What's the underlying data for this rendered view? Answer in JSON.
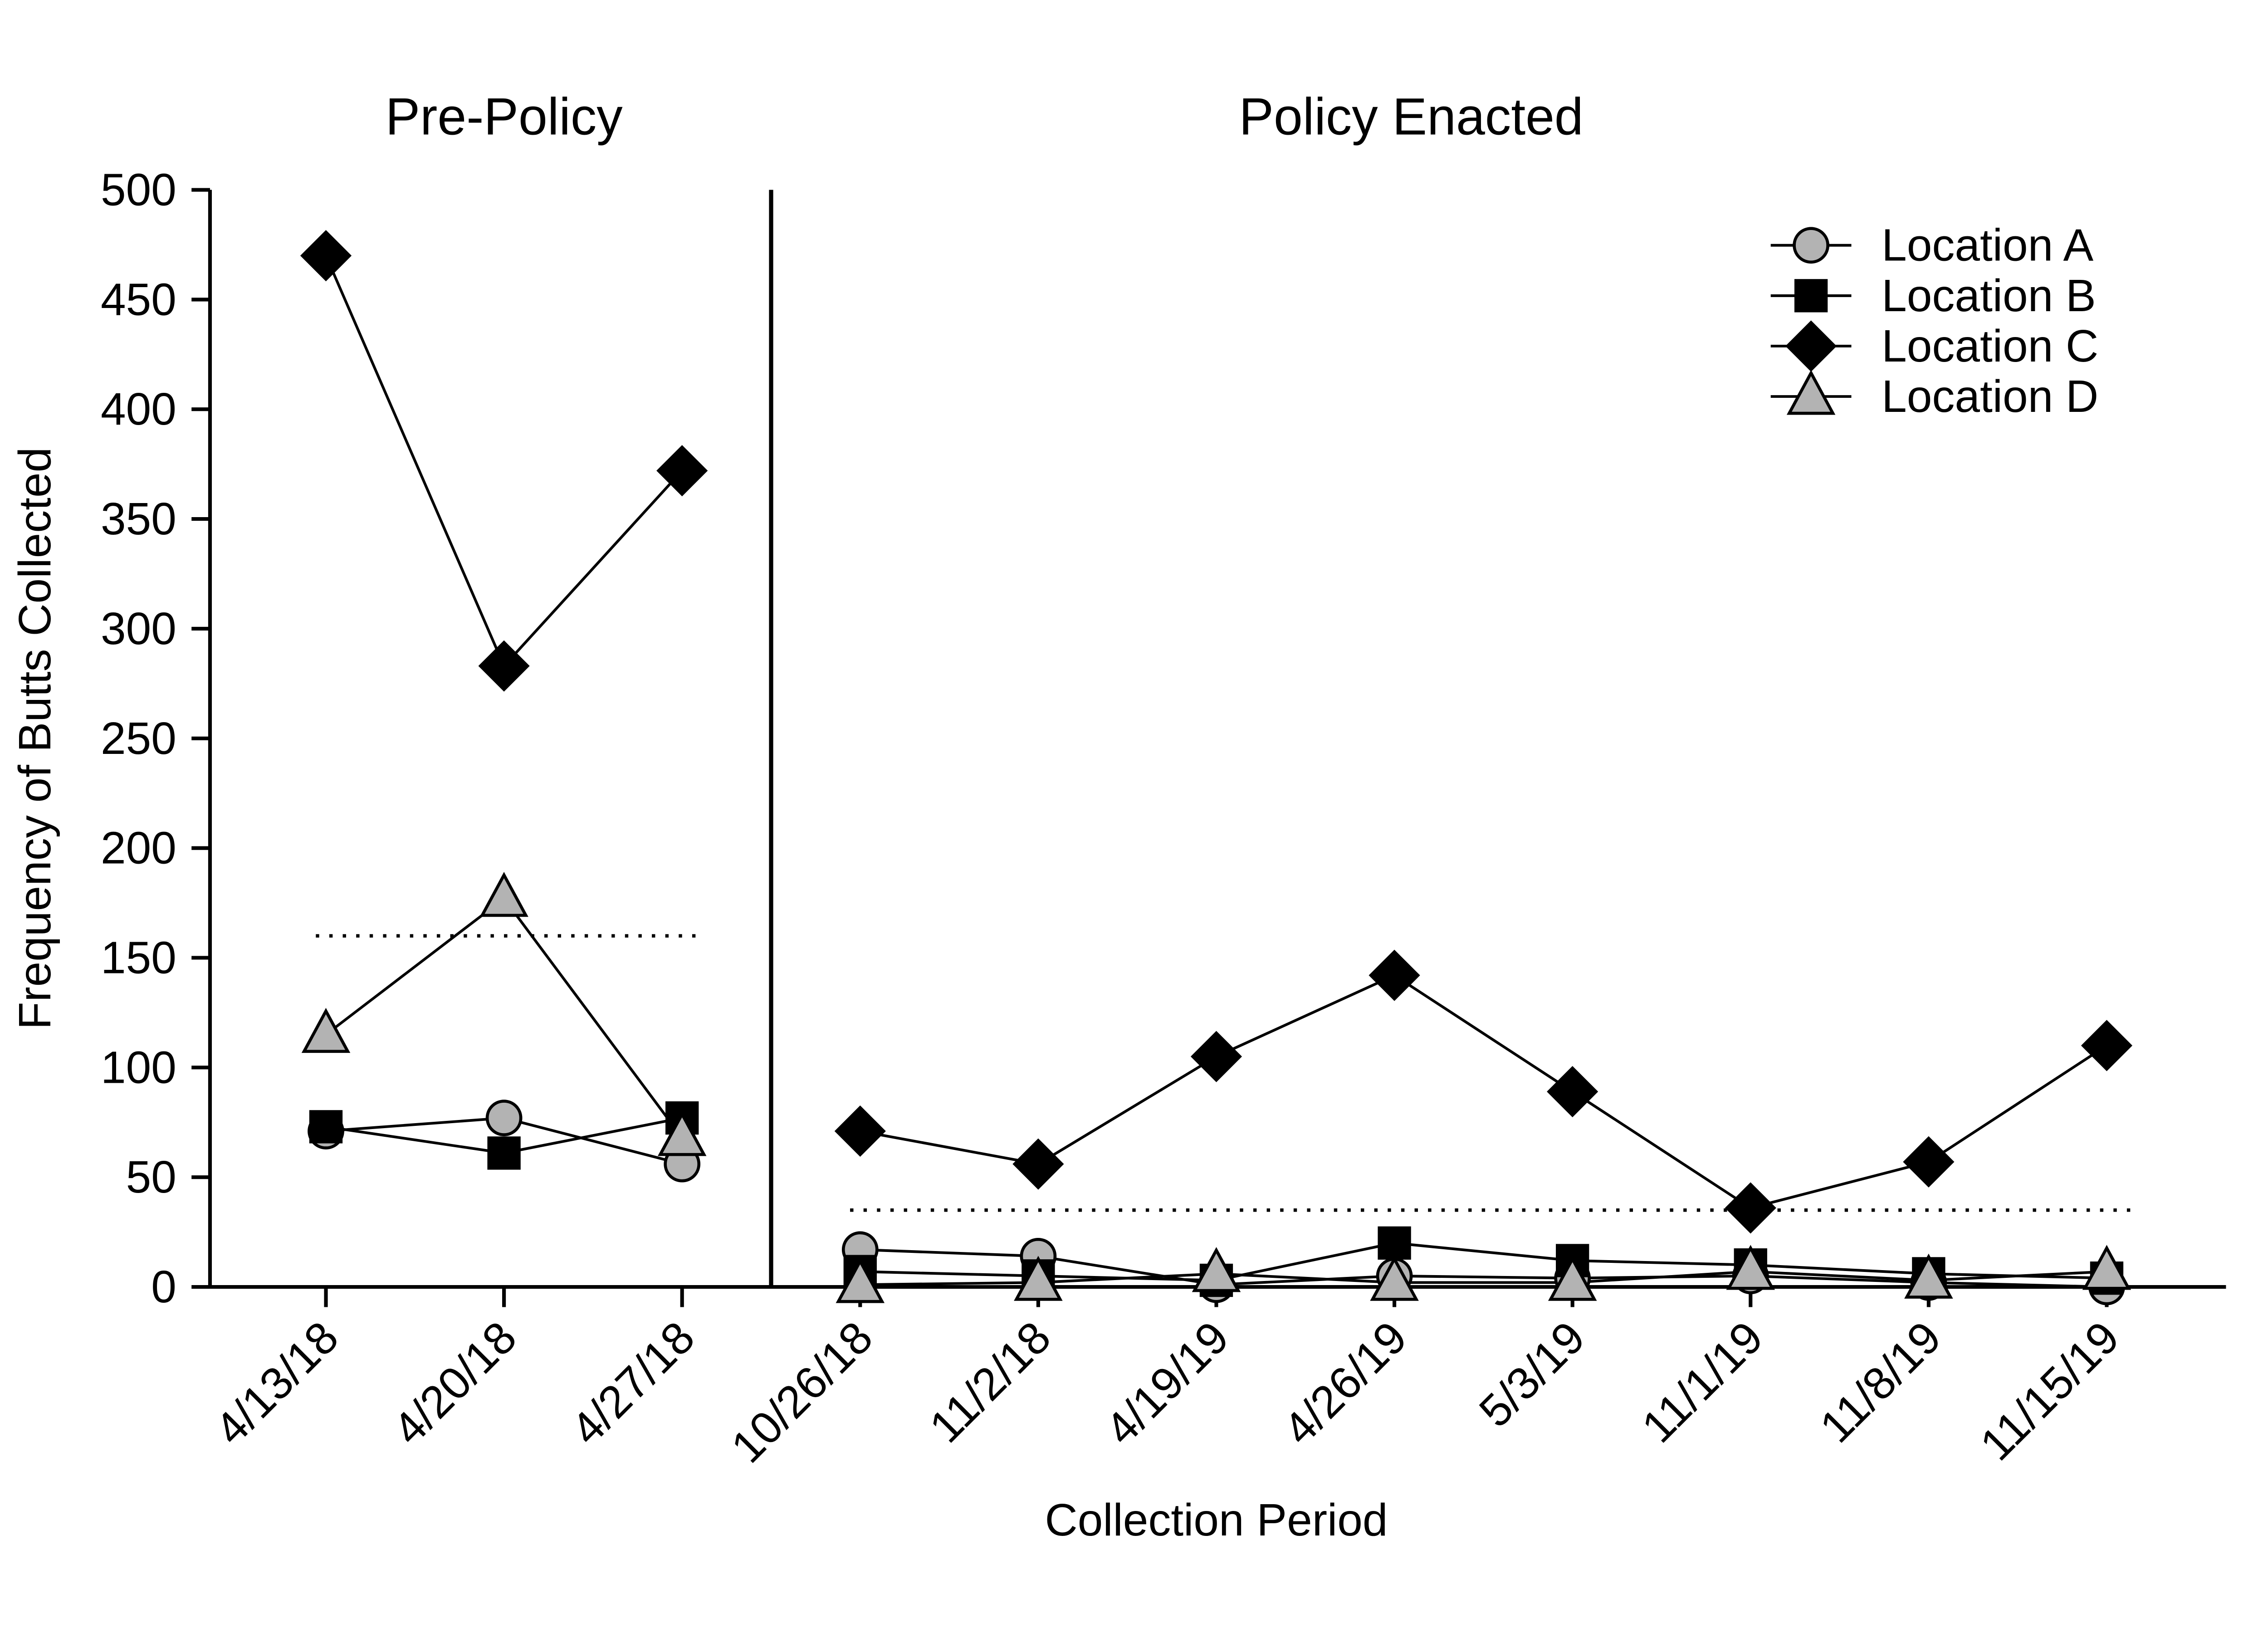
{
  "chart_data": {
    "type": "line",
    "region_titles": {
      "pre": "Pre-Policy",
      "post": "Policy Enacted"
    },
    "xlabel": "Collection Period",
    "ylabel": "Frequency of Butts Collected",
    "ylim": [
      0,
      500
    ],
    "yticks": [
      0,
      50,
      100,
      150,
      200,
      250,
      300,
      350,
      400,
      450,
      500
    ],
    "categories": [
      "4/13/18",
      "4/20/18",
      "4/27/18",
      "10/26/18",
      "11/2/18",
      "4/19/19",
      "4/26/19",
      "5/3/19",
      "11/1/19",
      "11/8/19",
      "11/15/19"
    ],
    "pre_policy_count": 3,
    "series": [
      {
        "name": "Location A",
        "marker": "circle",
        "fill": "#b3b3b3",
        "stroke": "#000000",
        "values": [
          71,
          77,
          56,
          17,
          14,
          1,
          5,
          4,
          5,
          2,
          0
        ]
      },
      {
        "name": "Location B",
        "marker": "square",
        "fill": "#000000",
        "stroke": "#000000",
        "values": [
          73,
          61,
          77,
          7,
          5,
          3,
          20,
          12,
          10,
          6,
          4
        ]
      },
      {
        "name": "Location C",
        "marker": "diamond",
        "fill": "#000000",
        "stroke": "#000000",
        "values": [
          470,
          283,
          372,
          71,
          56,
          105,
          142,
          89,
          36,
          57,
          110
        ]
      },
      {
        "name": "Location D",
        "marker": "triangle",
        "fill": "#b3b3b3",
        "stroke": "#000000",
        "values": [
          115,
          177,
          68,
          1,
          2,
          6,
          2,
          2,
          7,
          3,
          7
        ]
      }
    ],
    "reference_lines": [
      {
        "name": "pre-policy-mean-line",
        "y": 160,
        "start_index": 0,
        "end_index": 2
      },
      {
        "name": "policy-mean-line",
        "y": 35,
        "start_index": 3,
        "end_index": 10
      }
    ],
    "legend": {
      "items": [
        "Location A",
        "Location B",
        "Location C",
        "Location D"
      ]
    },
    "colors": {
      "axis": "#000000",
      "line": "#000000",
      "gray_marker": "#b3b3b3",
      "black_marker": "#000000",
      "background": "#ffffff"
    },
    "grid": false,
    "legend_position": "top-right"
  }
}
